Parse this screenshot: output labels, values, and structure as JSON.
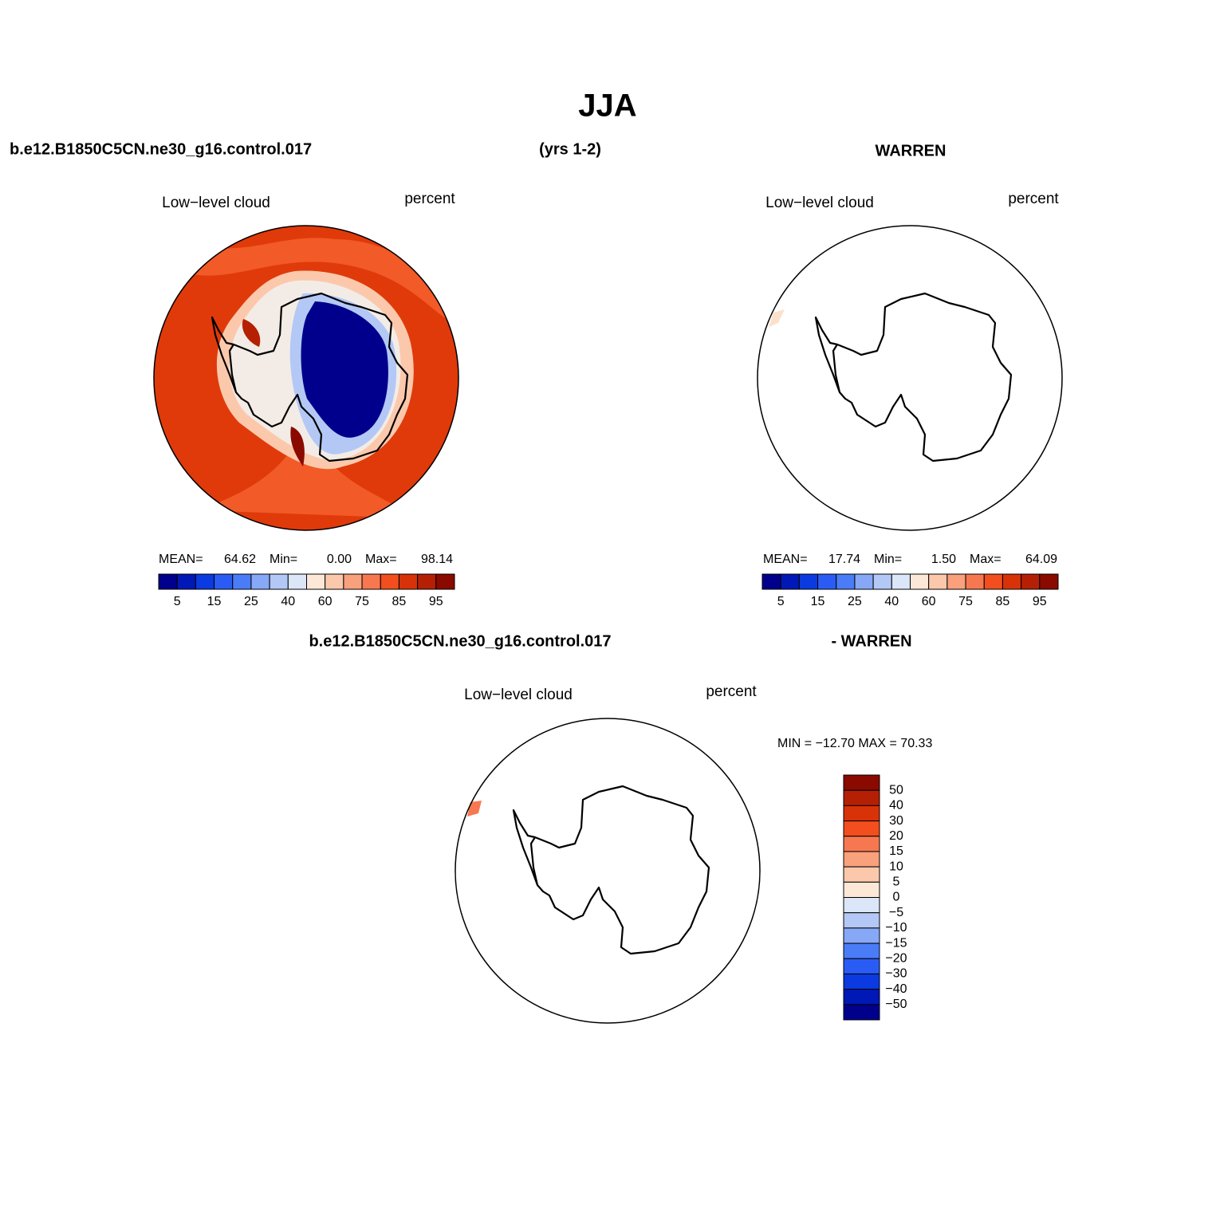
{
  "title": "JJA",
  "header": {
    "case": "b.e12.B1850C5CN.ne30_g16.control.017",
    "years": "(yrs 1-2)",
    "obs": "WARREN"
  },
  "panels": [
    {
      "label": "Low−level cloud",
      "units": "percent",
      "stats": {
        "mean_label": "MEAN=",
        "mean": "64.62",
        "min_label": "Min=",
        "min": "0.00",
        "max_label": "Max=",
        "max": "98.14"
      }
    },
    {
      "label": "Low−level cloud",
      "units": "percent",
      "stats": {
        "mean_label": "MEAN=",
        "mean": "17.74",
        "min_label": "Min=",
        "min": "1.50",
        "max_label": "Max=",
        "max": "64.09"
      }
    }
  ],
  "colorbar": {
    "labels": [
      "5",
      "15",
      "25",
      "40",
      "60",
      "75",
      "85",
      "95"
    ],
    "colors": [
      "#00008c",
      "#0018b5",
      "#0a3ae0",
      "#2a5cf5",
      "#4a7cf7",
      "#86a8f7",
      "#b3c8f5",
      "#dbe6f8",
      "#fde8d8",
      "#fcc8ac",
      "#f9a07c",
      "#f77850",
      "#f24e1e",
      "#d83208",
      "#b52004",
      "#8a0a00"
    ]
  },
  "diff": {
    "case": "b.e12.B1850C5CN.ne30_g16.control.017",
    "obs": "- WARREN",
    "label": "Low−level cloud",
    "units": "percent",
    "minmax": "MIN = −12.70 MAX =  70.33",
    "colorbar": {
      "labels": [
        "50",
        "40",
        "30",
        "20",
        "15",
        "10",
        "5",
        "0",
        "−5",
        "−10",
        "−15",
        "−20",
        "−30",
        "−40",
        "−50"
      ],
      "colors": [
        "#8a0a00",
        "#b52004",
        "#d83208",
        "#f24e1e",
        "#f77850",
        "#f9a07c",
        "#fcc8ac",
        "#fde8d8",
        "#dbe6f8",
        "#b3c8f5",
        "#86a8f7",
        "#4a7cf7",
        "#2a5cf5",
        "#0a3ae0",
        "#0018b5",
        "#00008c"
      ]
    }
  }
}
